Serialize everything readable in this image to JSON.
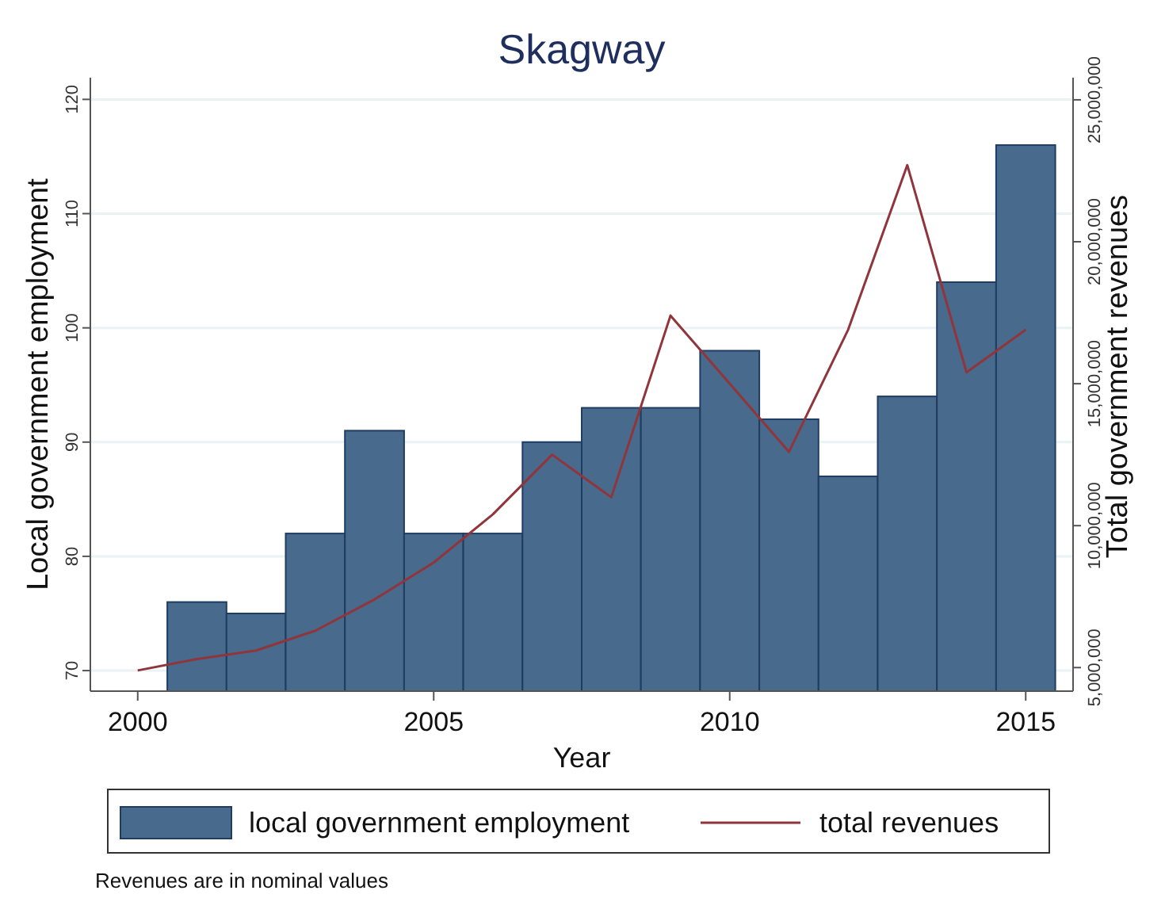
{
  "chart_data": {
    "type": "bar",
    "title": "Skagway",
    "xlabel": "Year",
    "ylabel": "Local government employment",
    "y2label": "Total government revenues",
    "x": [
      2001,
      2002,
      2003,
      2004,
      2005,
      2006,
      2007,
      2008,
      2009,
      2010,
      2011,
      2012,
      2013,
      2014,
      2015
    ],
    "series": [
      {
        "name": "local government employment",
        "color": "#486a8c",
        "values": [
          76,
          75,
          82,
          91,
          82,
          82,
          90,
          93,
          93,
          98,
          92,
          87,
          94,
          104,
          116
        ]
      },
      {
        "name": "total revenues",
        "type": "line",
        "axis": "y2",
        "color": "#90353b",
        "x": [
          2000,
          2001,
          2002,
          2003,
          2004,
          2005,
          2006,
          2007,
          2008,
          2009,
          2010,
          2011,
          2012,
          2013,
          2014,
          2015
        ],
        "values": [
          4900000,
          5300000,
          5600000,
          6300000,
          7400000,
          8700000,
          10400000,
          12500000,
          11000000,
          17400000,
          15000000,
          12600000,
          16900000,
          22700000,
          15400000,
          16900000
        ]
      }
    ],
    "xlim": [
      1999.2,
      2015.8
    ],
    "xticks": [
      2000,
      2005,
      2010,
      2015
    ],
    "ylim": [
      68.2,
      121.9
    ],
    "yticks": [
      70,
      80,
      90,
      100,
      110,
      120
    ],
    "y2lim": [
      4170000,
      25780000
    ],
    "y2ticks": [
      {
        "value": 5000000,
        "label": "5,000,000"
      },
      {
        "value": 10000000,
        "label": "10,000,000"
      },
      {
        "value": 15000000,
        "label": "15,000,000"
      },
      {
        "value": 20000000,
        "label": "20,000,000"
      },
      {
        "value": 25000000,
        "label": "25,000,000"
      }
    ],
    "grid": "y",
    "legend": "bottom",
    "annotations": [
      "Revenues are in nominal values"
    ]
  }
}
